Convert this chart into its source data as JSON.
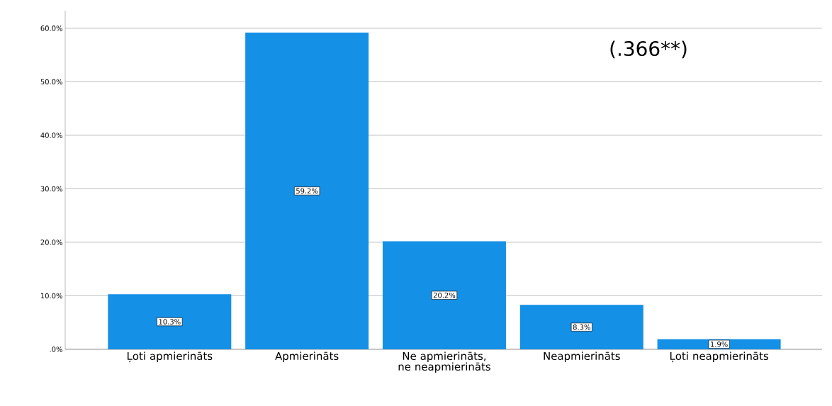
{
  "chart_data": {
    "type": "bar",
    "categories": [
      "Ļoti apmierināts",
      "Apmierināts",
      "Ne apmierināts, ne neapmierināts",
      "Neapmierināts",
      "Ļoti neapmierināts"
    ],
    "values": [
      10.3,
      59.2,
      20.2,
      8.3,
      1.9
    ],
    "value_labels": [
      "10.3%",
      "59.2%",
      "20.2%",
      "8.3%",
      "1.9%"
    ],
    "color": "#1490e6",
    "ylim": [
      0,
      63.3
    ],
    "yticks": [
      {
        "value": 0,
        "label": ".0%"
      },
      {
        "value": 10,
        "label": "10.0%"
      },
      {
        "value": 20,
        "label": "20.0%"
      },
      {
        "value": 30,
        "label": "30.0%"
      },
      {
        "value": 40,
        "label": "40.0%"
      },
      {
        "value": 50,
        "label": "50.0%"
      },
      {
        "value": 60,
        "label": "60.0%"
      }
    ],
    "grid": "y",
    "annotations": [
      "(.366**)"
    ]
  }
}
